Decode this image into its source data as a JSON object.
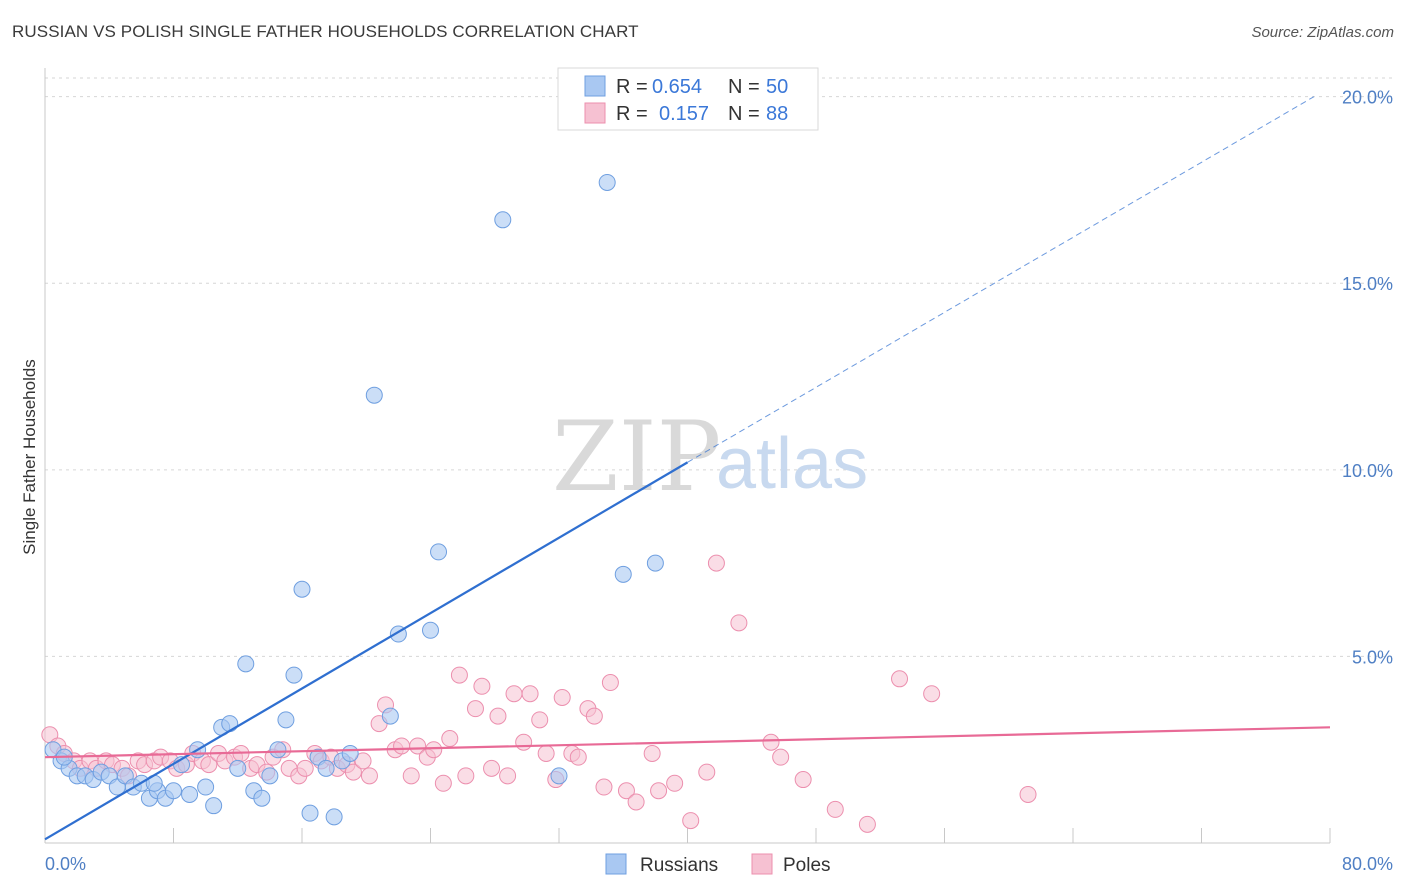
{
  "title": "RUSSIAN VS POLISH SINGLE FATHER HOUSEHOLDS CORRELATION CHART",
  "source": "Source: ZipAtlas.com",
  "watermark": {
    "zip": "ZIP",
    "atlas": "atlas"
  },
  "colors": {
    "russians_fill": "#a9c8f2",
    "russians_stroke": "#6f9fe0",
    "russians_line": "#2f6fd0",
    "poles_fill": "#f6c1d2",
    "poles_stroke": "#ec8fae",
    "poles_line": "#e86a96",
    "tick_text": "#4f7fc4",
    "grid": "#d6d6d6"
  },
  "legend": {
    "rows": [
      {
        "r_label": "R =",
        "r_value": "0.654",
        "n_label": "N =",
        "n_value": "50"
      },
      {
        "r_label": "R =",
        "r_value": "0.157",
        "n_label": "N =",
        "n_value": "88"
      }
    ]
  },
  "chart_data": {
    "type": "scatter",
    "title": "RUSSIAN VS POLISH SINGLE FATHER HOUSEHOLDS CORRELATION CHART",
    "xlabel": "",
    "ylabel": "Single Father Households",
    "xlim": [
      0,
      80
    ],
    "ylim": [
      0,
      20.5
    ],
    "x_tick_labels": [
      "0.0%",
      "80.0%"
    ],
    "y_ticks": [
      5,
      10,
      15,
      20
    ],
    "y_tick_labels": [
      "5.0%",
      "10.0%",
      "15.0%",
      "20.0%"
    ],
    "x_minor_ticks": [
      8,
      16,
      24,
      32,
      40,
      48,
      56,
      64,
      72,
      80
    ],
    "legend_position": "top-center",
    "series": [
      {
        "name": "Russians",
        "R": 0.654,
        "N": 50,
        "trend": {
          "x0": 0,
          "y0": 0.1,
          "x1": 40,
          "y1": 10.2,
          "dashed_to_x": 79,
          "dashed_to_y": 20.0
        },
        "points": [
          [
            0.5,
            2.5
          ],
          [
            1.0,
            2.2
          ],
          [
            1.5,
            2.0
          ],
          [
            2.0,
            1.8
          ],
          [
            2.5,
            1.8
          ],
          [
            3.0,
            1.7
          ],
          [
            3.5,
            1.9
          ],
          [
            4.0,
            1.8
          ],
          [
            4.5,
            1.5
          ],
          [
            5.0,
            1.8
          ],
          [
            5.5,
            1.5
          ],
          [
            6.0,
            1.6
          ],
          [
            6.5,
            1.2
          ],
          [
            7.0,
            1.4
          ],
          [
            7.5,
            1.2
          ],
          [
            8.0,
            1.4
          ],
          [
            8.5,
            2.1
          ],
          [
            9.0,
            1.3
          ],
          [
            9.5,
            2.5
          ],
          [
            10.0,
            1.5
          ],
          [
            10.5,
            1.0
          ],
          [
            11.0,
            3.1
          ],
          [
            11.5,
            3.2
          ],
          [
            12.0,
            2.0
          ],
          [
            12.5,
            4.8
          ],
          [
            13.0,
            1.4
          ],
          [
            13.5,
            1.2
          ],
          [
            14.0,
            1.8
          ],
          [
            14.5,
            2.5
          ],
          [
            15.0,
            3.3
          ],
          [
            15.5,
            4.5
          ],
          [
            16.0,
            6.8
          ],
          [
            16.5,
            0.8
          ],
          [
            17.0,
            2.3
          ],
          [
            17.5,
            2.0
          ],
          [
            18.0,
            0.7
          ],
          [
            18.5,
            2.2
          ],
          [
            19.0,
            2.4
          ],
          [
            20.5,
            12.0
          ],
          [
            21.5,
            3.4
          ],
          [
            22.0,
            5.6
          ],
          [
            24.0,
            5.7
          ],
          [
            24.5,
            7.8
          ],
          [
            28.5,
            16.7
          ],
          [
            32.0,
            1.8
          ],
          [
            35.0,
            17.7
          ],
          [
            36.0,
            7.2
          ],
          [
            38.0,
            7.5
          ],
          [
            1.2,
            2.3
          ],
          [
            6.8,
            1.6
          ]
        ]
      },
      {
        "name": "Poles",
        "R": 0.157,
        "N": 88,
        "trend": {
          "x0": 0,
          "y0": 2.3,
          "x1": 80,
          "y1": 3.1
        },
        "points": [
          [
            0.3,
            2.9
          ],
          [
            0.8,
            2.6
          ],
          [
            1.2,
            2.4
          ],
          [
            1.8,
            2.2
          ],
          [
            2.2,
            2.0
          ],
          [
            2.8,
            2.2
          ],
          [
            3.2,
            2.0
          ],
          [
            3.8,
            2.2
          ],
          [
            4.2,
            2.1
          ],
          [
            4.8,
            2.0
          ],
          [
            5.2,
            1.8
          ],
          [
            5.8,
            2.2
          ],
          [
            6.2,
            2.1
          ],
          [
            6.8,
            2.2
          ],
          [
            7.2,
            2.3
          ],
          [
            7.8,
            2.2
          ],
          [
            8.2,
            2.0
          ],
          [
            8.8,
            2.1
          ],
          [
            9.2,
            2.4
          ],
          [
            9.8,
            2.2
          ],
          [
            10.2,
            2.1
          ],
          [
            10.8,
            2.4
          ],
          [
            11.2,
            2.2
          ],
          [
            11.8,
            2.3
          ],
          [
            12.2,
            2.4
          ],
          [
            12.8,
            2.0
          ],
          [
            13.2,
            2.1
          ],
          [
            13.8,
            1.9
          ],
          [
            14.2,
            2.3
          ],
          [
            14.8,
            2.5
          ],
          [
            15.2,
            2.0
          ],
          [
            15.8,
            1.8
          ],
          [
            16.2,
            2.0
          ],
          [
            16.8,
            2.4
          ],
          [
            17.2,
            2.2
          ],
          [
            17.8,
            2.3
          ],
          [
            18.2,
            2.0
          ],
          [
            18.8,
            2.1
          ],
          [
            19.2,
            1.9
          ],
          [
            19.8,
            2.2
          ],
          [
            20.2,
            1.8
          ],
          [
            20.8,
            3.2
          ],
          [
            21.2,
            3.7
          ],
          [
            21.8,
            2.5
          ],
          [
            22.2,
            2.6
          ],
          [
            22.8,
            1.8
          ],
          [
            23.2,
            2.6
          ],
          [
            23.8,
            2.3
          ],
          [
            24.2,
            2.5
          ],
          [
            24.8,
            1.6
          ],
          [
            25.2,
            2.8
          ],
          [
            25.8,
            4.5
          ],
          [
            26.2,
            1.8
          ],
          [
            26.8,
            3.6
          ],
          [
            27.2,
            4.2
          ],
          [
            27.8,
            2.0
          ],
          [
            28.2,
            3.4
          ],
          [
            28.8,
            1.8
          ],
          [
            29.2,
            4.0
          ],
          [
            29.8,
            2.7
          ],
          [
            30.2,
            4.0
          ],
          [
            30.8,
            3.3
          ],
          [
            31.2,
            2.4
          ],
          [
            31.8,
            1.7
          ],
          [
            32.2,
            3.9
          ],
          [
            32.8,
            2.4
          ],
          [
            33.2,
            2.3
          ],
          [
            33.8,
            3.6
          ],
          [
            34.2,
            3.4
          ],
          [
            34.8,
            1.5
          ],
          [
            35.2,
            4.3
          ],
          [
            36.2,
            1.4
          ],
          [
            36.8,
            1.1
          ],
          [
            37.8,
            2.4
          ],
          [
            38.2,
            1.4
          ],
          [
            39.2,
            1.6
          ],
          [
            40.2,
            0.6
          ],
          [
            41.2,
            1.9
          ],
          [
            41.8,
            7.5
          ],
          [
            43.2,
            5.9
          ],
          [
            45.2,
            2.7
          ],
          [
            45.8,
            2.3
          ],
          [
            47.2,
            1.7
          ],
          [
            49.2,
            0.9
          ],
          [
            51.2,
            0.5
          ],
          [
            53.2,
            4.4
          ],
          [
            55.2,
            4.0
          ],
          [
            61.2,
            1.3
          ]
        ]
      }
    ]
  },
  "bottom_legend": {
    "items": [
      {
        "label": "Russians"
      },
      {
        "label": "Poles"
      }
    ]
  }
}
